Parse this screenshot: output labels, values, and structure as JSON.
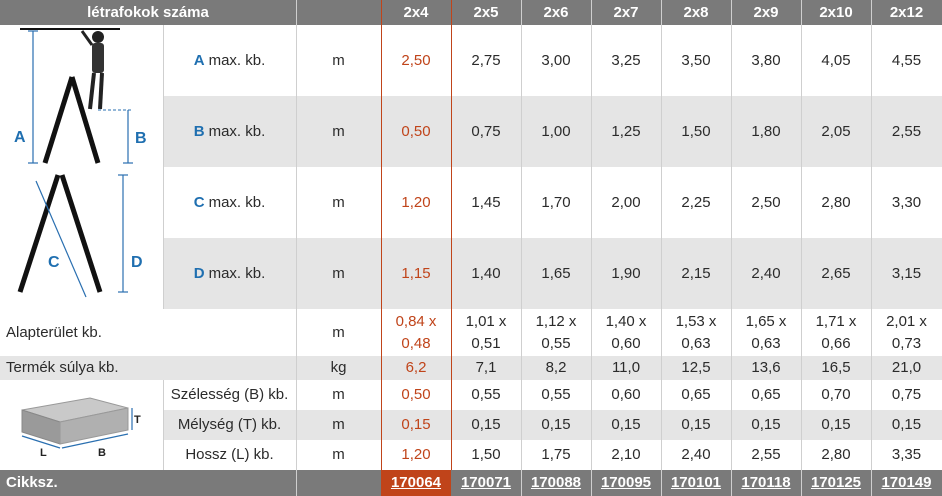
{
  "header": {
    "title": "létrafokok száma",
    "sizes": [
      "2x4",
      "2x5",
      "2x6",
      "2x7",
      "2x8",
      "2x9",
      "2x10",
      "2x12"
    ]
  },
  "rows": {
    "a": {
      "letter": "A",
      "label": "max. kb.",
      "unit": "m",
      "values": [
        "2,50",
        "2,75",
        "3,00",
        "3,25",
        "3,50",
        "3,80",
        "4,05",
        "4,55"
      ]
    },
    "b": {
      "letter": "B",
      "label": "max. kb.",
      "unit": "m",
      "values": [
        "0,50",
        "0,75",
        "1,00",
        "1,25",
        "1,50",
        "1,80",
        "2,05",
        "2,55"
      ]
    },
    "c": {
      "letter": "C",
      "label": "max. kb.",
      "unit": "m",
      "values": [
        "1,20",
        "1,45",
        "1,70",
        "2,00",
        "2,25",
        "2,50",
        "2,80",
        "3,30"
      ]
    },
    "d": {
      "letter": "D",
      "label": "max. kb.",
      "unit": "m",
      "values": [
        "1,15",
        "1,40",
        "1,65",
        "1,90",
        "2,15",
        "2,40",
        "2,65",
        "3,15"
      ]
    },
    "area": {
      "label": "Alapterület kb.",
      "unit": "m",
      "top": [
        "0,84 x",
        "1,01 x",
        "1,12 x",
        "1,40 x",
        "1,53 x",
        "1,65 x",
        "1,71 x",
        "2,01 x"
      ],
      "bottom": [
        "0,48",
        "0,51",
        "0,55",
        "0,60",
        "0,63",
        "0,63",
        "0,66",
        "0,73"
      ]
    },
    "weight": {
      "label": "Termék súlya kb.",
      "unit": "kg",
      "values": [
        "6,2",
        "7,1",
        "8,2",
        "11,0",
        "12,5",
        "13,6",
        "16,5",
        "21,0"
      ]
    },
    "width": {
      "label": "Szélesség (B) kb.",
      "unit": "m",
      "values": [
        "0,50",
        "0,55",
        "0,55",
        "0,60",
        "0,65",
        "0,65",
        "0,70",
        "0,75"
      ]
    },
    "depth": {
      "label": "Mélység (T) kb.",
      "unit": "m",
      "values": [
        "0,15",
        "0,15",
        "0,15",
        "0,15",
        "0,15",
        "0,15",
        "0,15",
        "0,15"
      ]
    },
    "length": {
      "label": "Hossz (L) kb.",
      "unit": "m",
      "values": [
        "1,20",
        "1,50",
        "1,75",
        "2,10",
        "2,40",
        "2,55",
        "2,80",
        "3,35"
      ]
    }
  },
  "footer": {
    "label": "Cikksz.",
    "codes": [
      "170064",
      "170071",
      "170088",
      "170095",
      "170101",
      "170118",
      "170125",
      "170149"
    ]
  },
  "diagram": {
    "letters": [
      "A",
      "B",
      "C",
      "D"
    ],
    "box_letters": [
      "T",
      "L",
      "B"
    ]
  },
  "colors": {
    "highlight": "#c0441a",
    "accent_blue": "#1f6fb0",
    "header_gray": "#7a7a7a"
  }
}
